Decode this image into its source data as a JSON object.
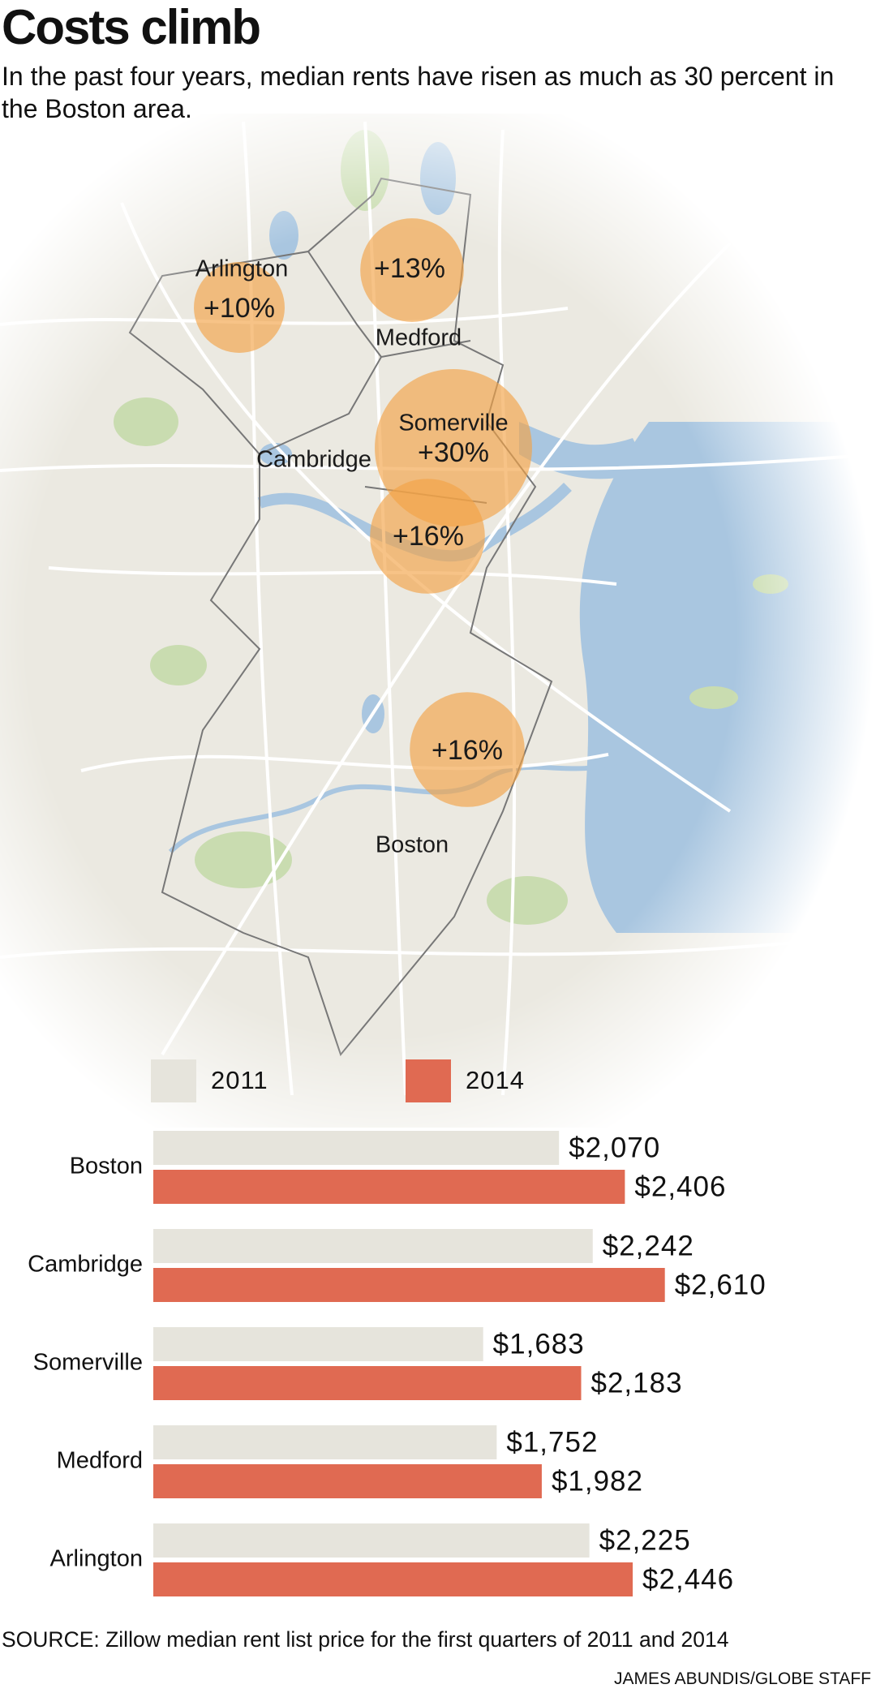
{
  "title": "Costs climb",
  "subtitle": "In the past four years, median rents have risen as much as 30 percent in the Boston area.",
  "map": {
    "places": [
      {
        "name": "Arlington",
        "change": 10,
        "change_label": "+10%"
      },
      {
        "name": "Medford",
        "change": 13,
        "change_label": "+13%"
      },
      {
        "name": "Somerville",
        "change": 30,
        "change_label": "+30%"
      },
      {
        "name": "Cambridge",
        "change": 16,
        "change_label": "+16%"
      },
      {
        "name": "Boston",
        "change": 16,
        "change_label": "+16%"
      }
    ]
  },
  "chart_data": {
    "type": "bar",
    "orientation": "horizontal",
    "categories": [
      "Boston",
      "Cambridge",
      "Somerville",
      "Medford",
      "Arlington"
    ],
    "series": [
      {
        "name": "2011",
        "color": "#e6e4dc",
        "values": [
          2070,
          2242,
          1683,
          1752,
          2225
        ],
        "value_labels": [
          "$2,070",
          "$2,242",
          "$1,683",
          "$1,752",
          "$2,225"
        ]
      },
      {
        "name": "2014",
        "color": "#e06a52",
        "values": [
          2406,
          2610,
          2183,
          1982,
          2446
        ],
        "value_labels": [
          "$2,406",
          "$2,610",
          "$2,183",
          "$1,982",
          "$2,446"
        ]
      }
    ],
    "xlim": [
      0,
      3650
    ]
  },
  "source": "SOURCE: Zillow median rent list price for the first quarters of 2011 and 2014",
  "credit": "JAMES ABUNDIS/GLOBE STAFF"
}
